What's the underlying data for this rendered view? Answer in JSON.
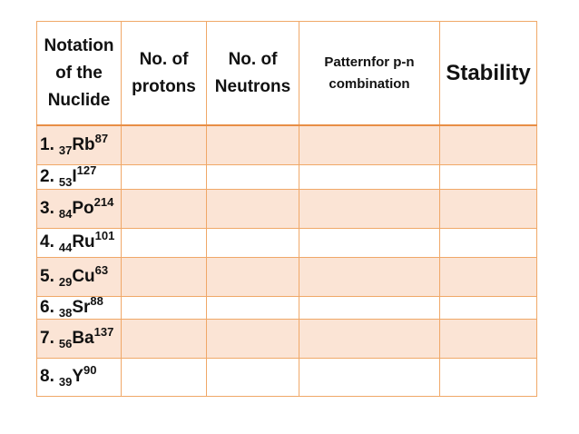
{
  "headers": {
    "notation": [
      "Notation",
      "of the",
      "Nuclide"
    ],
    "protons": [
      "No. of",
      "protons"
    ],
    "neutrons": [
      "No. of",
      "Neutrons"
    ],
    "pattern": [
      "Patternfor p-n",
      "combination"
    ],
    "stability": "Stability"
  },
  "rows": [
    {
      "num": "1.",
      "z": "37",
      "sym": "Rb",
      "a": "87"
    },
    {
      "num": "2.",
      "z": "53",
      "sym": "I",
      "a": "127"
    },
    {
      "num": "3.",
      "z": "84",
      "sym": "Po",
      "a": "214"
    },
    {
      "num": "4.",
      "z": "44",
      "sym": "Ru",
      "a": "101"
    },
    {
      "num": "5.",
      "z": "29",
      "sym": "Cu",
      "a": "63"
    },
    {
      "num": "6.",
      "z": "38",
      "sym": "Sr",
      "a": "88"
    },
    {
      "num": "7.",
      "z": "56",
      "sym": "Ba",
      "a": "137"
    },
    {
      "num": "8.",
      "z": "39",
      "sym": "Y",
      "a": "90"
    }
  ],
  "colors": {
    "border": "#f0a868",
    "shade": "#fbe4d5"
  }
}
